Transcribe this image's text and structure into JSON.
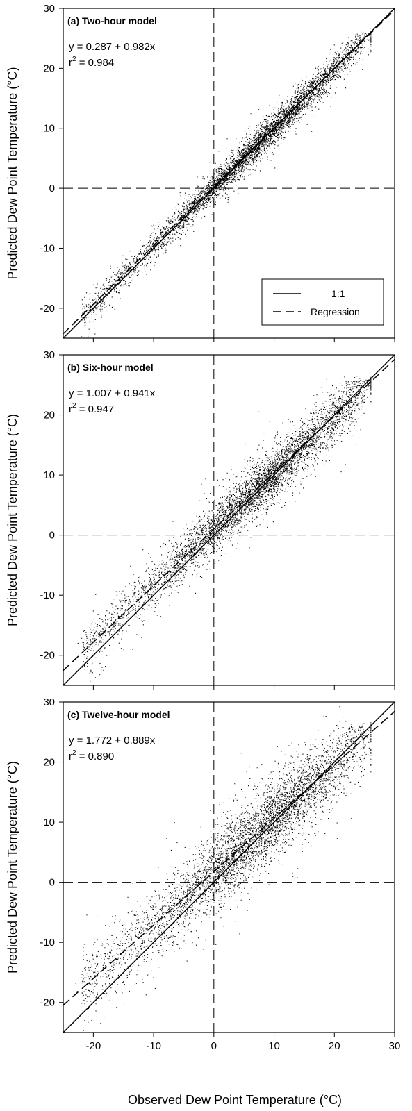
{
  "chart_data": [
    {
      "type": "scatter",
      "title": "(a) Two-hour model",
      "equation": "y = 0.287 + 0.982x",
      "r2_prefix": "r",
      "r2_sup": "2",
      "r2_value": " = 0.984",
      "regression": {
        "intercept": 0.287,
        "slope": 0.982
      },
      "r2": 0.984,
      "spread": 2.0,
      "xlim": [
        -25,
        30
      ],
      "ylim": [
        -25,
        30
      ],
      "xticks": [
        -20,
        -10,
        0,
        10,
        20,
        30
      ],
      "yticks": [
        -20,
        -10,
        0,
        10,
        20,
        30
      ],
      "show_x_tick_labels": false,
      "reference_lines": {
        "x": 0,
        "y": 0
      },
      "legend": {
        "placement": "bottom-right",
        "entries": [
          "1:1",
          "Regression"
        ]
      }
    },
    {
      "type": "scatter",
      "title": "(b) Six-hour model",
      "equation": "y = 1.007 + 0.941x",
      "r2_prefix": "r",
      "r2_sup": "2",
      "r2_value": " = 0.947",
      "regression": {
        "intercept": 1.007,
        "slope": 0.941
      },
      "r2": 0.947,
      "spread": 3.4,
      "xlim": [
        -25,
        30
      ],
      "ylim": [
        -25,
        30
      ],
      "xticks": [
        -20,
        -10,
        0,
        10,
        20,
        30
      ],
      "yticks": [
        -20,
        -10,
        0,
        10,
        20,
        30
      ],
      "show_x_tick_labels": false,
      "reference_lines": {
        "x": 0,
        "y": 0
      }
    },
    {
      "type": "scatter",
      "title": "(c) Twelve-hour model",
      "equation": "y = 1.772 + 0.889x",
      "r2_prefix": "r",
      "r2_sup": "2",
      "r2_value": " = 0.890",
      "regression": {
        "intercept": 1.772,
        "slope": 0.889
      },
      "r2": 0.89,
      "spread": 4.8,
      "xlim": [
        -25,
        30
      ],
      "ylim": [
        -25,
        30
      ],
      "xticks": [
        -20,
        -10,
        0,
        10,
        20,
        30
      ],
      "yticks": [
        -20,
        -10,
        0,
        10,
        20,
        30
      ],
      "show_x_tick_labels": true,
      "reference_lines": {
        "x": 0,
        "y": 0
      }
    }
  ],
  "ylabel": "Predicted Dew Point Temperature (°C)",
  "xlabel": "Observed Dew Point Temperature (°C)",
  "colors": {
    "points": "#000000",
    "lines": "#000000",
    "background": "#ffffff"
  }
}
